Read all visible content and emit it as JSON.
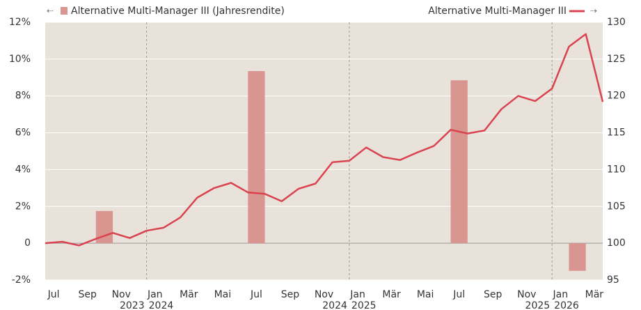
{
  "chart_data": {
    "type": "combo",
    "categories": [
      "Jul",
      null,
      "Sep",
      null,
      "Nov",
      null,
      "Jan",
      null,
      "Mär",
      null,
      "Mai",
      null,
      "Jul",
      null,
      "Sep",
      null,
      "Nov",
      null,
      "Jan",
      null,
      "Mär",
      null,
      "Mai",
      null,
      "Jul",
      null,
      "Sep",
      null,
      "Nov",
      null,
      "Jan",
      null,
      "Mär",
      null
    ],
    "year_breaks": [
      {
        "before": "2023",
        "after": "2024"
      },
      {
        "before": "2024",
        "after": "2025"
      },
      {
        "before": "2025",
        "after": "2026"
      }
    ],
    "series": [
      {
        "name": "Alternative Multi-Manager III (Jahresrendite)",
        "type": "bar",
        "color": "#d9958f",
        "values": [
          null,
          null,
          null,
          1.75,
          null,
          null,
          null,
          null,
          null,
          null,
          null,
          null,
          9.35,
          null,
          null,
          null,
          null,
          null,
          null,
          null,
          null,
          null,
          null,
          null,
          8.85,
          null,
          null,
          null,
          null,
          null,
          null,
          -1.5,
          null,
          null
        ]
      },
      {
        "name": "Alternative Multi-Manager III",
        "type": "line",
        "axis": "y2",
        "color": "#d9434f",
        "values": [
          100,
          100.2,
          99.7,
          100.6,
          101.4,
          100.7,
          101.7,
          102.1,
          103.5,
          106.2,
          107.5,
          108.2,
          106.9,
          106.7,
          105.7,
          107.4,
          108.1,
          111,
          111.2,
          113,
          111.7,
          111.3,
          112.3,
          113.2,
          115.4,
          114.9,
          115.3,
          118.2,
          120,
          119.3,
          121,
          126.7,
          128.4,
          119.2
        ]
      }
    ],
    "ylim": [
      -2,
      12
    ],
    "yticks": [
      {
        "value": -2,
        "label": "-2%"
      },
      0,
      {
        "value": 2,
        "label": "2%"
      },
      {
        "value": 4,
        "label": "4%"
      },
      {
        "value": 6,
        "label": "6%"
      },
      {
        "value": 8,
        "label": "8%"
      },
      {
        "value": 10,
        "label": "10%"
      },
      {
        "value": 12,
        "label": "12%"
      }
    ],
    "y2lim": [
      95,
      130
    ],
    "y2ticks": [
      95,
      100,
      105,
      110,
      115,
      120,
      125,
      130
    ],
    "grid": true,
    "background": "#e8e2da"
  }
}
